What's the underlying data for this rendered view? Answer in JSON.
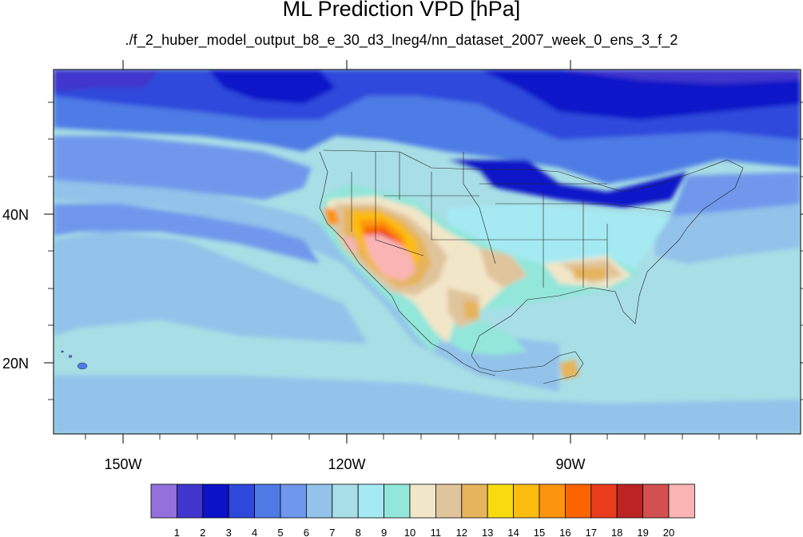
{
  "title": "ML Prediction VPD [hPa]",
  "subtitle": "./f_2_huber_model_output_b8_e_30_d3_lneg4/nn_dataset_2007_week_0_ens_3_f_2",
  "map": {
    "lon_ticks": [
      "150W",
      "120W",
      "90W"
    ],
    "lat_ticks": [
      "40N",
      "20N"
    ]
  },
  "colorbar": {
    "labels": [
      "1",
      "2",
      "3",
      "4",
      "5",
      "6",
      "7",
      "8",
      "9",
      "10",
      "11",
      "12",
      "13",
      "14",
      "15",
      "16",
      "17",
      "18",
      "19",
      "20"
    ],
    "colors": [
      "#9370db",
      "#4035cc",
      "#0c12c8",
      "#2e48dc",
      "#4e7be6",
      "#6f97ec",
      "#93c2ea",
      "#a8dee6",
      "#a5eaf2",
      "#93e6da",
      "#f2e6c8",
      "#e0c49c",
      "#e6b45c",
      "#f8dc10",
      "#fcbc10",
      "#fc9410",
      "#fc6400",
      "#e83c1c",
      "#bc2424",
      "#d25050",
      "#fab4b4"
    ]
  }
}
